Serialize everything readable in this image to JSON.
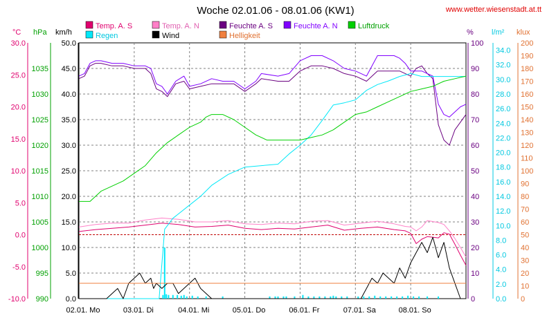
{
  "header": {
    "title": "Woche 02.01.06 - 08.01.06 (KW1)",
    "url": "www.wetter.wiesenstadt.at.tt"
  },
  "colors": {
    "temp_s": "#e0006e",
    "temp_n": "#ff80c8",
    "feuchte_s": "#6a0080",
    "feuchte_n": "#8000ff",
    "luftdruck": "#00d000",
    "regen": "#00e8f8",
    "wind": "#000000",
    "helligkeit": "#f08040",
    "grid": "#808080",
    "zero_line": "#c00000"
  },
  "legend": [
    {
      "key": "temp_s",
      "label": "Temp. A. S"
    },
    {
      "key": "temp_n",
      "label": "Temp. A. N"
    },
    {
      "key": "feuchte_s",
      "label": "Feuchte A. S"
    },
    {
      "key": "feuchte_n",
      "label": "Feuchte A. N"
    },
    {
      "key": "luftdruck",
      "label": "Luftdruck"
    },
    {
      "key": "regen",
      "label": "Regen"
    },
    {
      "key": "wind",
      "label": "Wind"
    },
    {
      "key": "helligkeit",
      "label": "Helligkeit"
    }
  ],
  "chart_data": {
    "type": "line",
    "x_labels": [
      "02.01. Mo",
      "03.01. Di",
      "04.01. Mi",
      "05.01. Do",
      "06.01. Fr",
      "07.01. Sa",
      "08.01. So"
    ],
    "axes": {
      "temp": {
        "unit": "°C",
        "min": -10,
        "max": 30,
        "ticks": [
          "30.0",
          "25.0",
          "20.0",
          "15.0",
          "10.0",
          "5.0",
          "0.0",
          "-5.0",
          "-10.0"
        ]
      },
      "pressure": {
        "unit": "hPa",
        "min": 990,
        "max": 1040,
        "ticks": [
          "1035",
          "1030",
          "1025",
          "1020",
          "1015",
          "1010",
          "1005",
          "1000",
          "995",
          "990"
        ]
      },
      "wind": {
        "unit": "km/h",
        "min": 0,
        "max": 50,
        "ticks": [
          "50.0",
          "45.0",
          "40.0",
          "35.0",
          "30.0",
          "25.0",
          "20.0",
          "15.0",
          "10.0",
          "5.0",
          "0.0"
        ]
      },
      "humidity": {
        "unit": "%",
        "min": 0,
        "max": 100,
        "ticks": [
          "100",
          "90",
          "80",
          "70",
          "60",
          "50",
          "40",
          "30",
          "20",
          "10",
          "0"
        ]
      },
      "rain": {
        "unit": "l/m²",
        "min": 0,
        "max": 35,
        "ticks": [
          "34.0",
          "32.0",
          "30.0",
          "28.0",
          "26.0",
          "24.0",
          "22.0",
          "20.0",
          "18.0",
          "16.0",
          "14.0",
          "12.0",
          "10.0",
          "8.0",
          "6.0",
          "4.0",
          "2.0",
          "0.0"
        ]
      },
      "light": {
        "unit": "klux",
        "min": 0,
        "max": 200,
        "ticks": [
          "200",
          "190",
          "180",
          "170",
          "160",
          "150",
          "140",
          "130",
          "120",
          "110",
          "100",
          "90",
          "80",
          "70",
          "60",
          "50",
          "40",
          "30",
          "20",
          "10",
          "0"
        ]
      }
    },
    "series": [
      {
        "key": "feuchte_s",
        "name": "Feuchte A. S",
        "axis": "humidity",
        "x": [
          0,
          0.1,
          0.2,
          0.3,
          0.4,
          0.6,
          0.8,
          1.0,
          1.2,
          1.3,
          1.4,
          1.5,
          1.6,
          1.75,
          1.9,
          2.0,
          2.2,
          2.4,
          2.6,
          2.8,
          3.0,
          3.2,
          3.3,
          3.6,
          3.8,
          4.0,
          4.2,
          4.4,
          4.6,
          4.8,
          5.0,
          5.2,
          5.4,
          5.6,
          5.7,
          5.8,
          5.9,
          6.0,
          6.1,
          6.2,
          6.3,
          6.4,
          6.5,
          6.6,
          6.7,
          6.8,
          6.9,
          7.0
        ],
        "y": [
          86,
          87,
          91,
          92,
          92,
          91,
          91,
          90,
          90,
          88,
          82,
          81,
          79,
          84,
          85,
          82,
          83,
          84,
          84,
          84,
          81,
          84,
          86,
          85,
          85,
          89,
          91,
          91,
          90,
          88,
          87,
          85,
          89,
          89,
          89,
          89,
          88,
          87,
          90,
          91,
          88,
          86,
          68,
          62,
          60,
          66,
          69,
          72
        ]
      },
      {
        "key": "feuchte_n",
        "name": "Feuchte A. N",
        "axis": "humidity",
        "x": [
          0,
          0.1,
          0.2,
          0.3,
          0.4,
          0.6,
          0.8,
          1.0,
          1.2,
          1.3,
          1.4,
          1.5,
          1.6,
          1.75,
          1.9,
          2.0,
          2.2,
          2.4,
          2.6,
          2.8,
          3.0,
          3.2,
          3.3,
          3.6,
          3.8,
          4.0,
          4.2,
          4.4,
          4.6,
          4.8,
          5.0,
          5.2,
          5.4,
          5.6,
          5.7,
          5.8,
          5.9,
          6.0,
          6.1,
          6.2,
          6.3,
          6.4,
          6.5,
          6.6,
          6.7,
          6.8,
          6.9,
          7.0
        ],
        "y": [
          87,
          88,
          92,
          93,
          93,
          92,
          92,
          91,
          91,
          90,
          84,
          83,
          80,
          85,
          87,
          83,
          84,
          86,
          85,
          85,
          82,
          85,
          88,
          87,
          88,
          93,
          95,
          95,
          93,
          90,
          89,
          87,
          95,
          95,
          95,
          94,
          92,
          89,
          89,
          89,
          88,
          87,
          76,
          72,
          71,
          73,
          75,
          76
        ]
      },
      {
        "key": "temp_n",
        "name": "Temp. A. N",
        "axis": "temp",
        "x": [
          0,
          0.3,
          0.6,
          0.9,
          1.2,
          1.5,
          1.8,
          2.1,
          2.4,
          2.7,
          3.0,
          3.3,
          3.6,
          3.9,
          4.2,
          4.5,
          4.8,
          5.1,
          5.4,
          5.7,
          5.9,
          6.0,
          6.1,
          6.2,
          6.3,
          6.5,
          6.6,
          6.7,
          6.8,
          6.9,
          7.0
        ],
        "y": [
          1.2,
          1.6,
          1.8,
          1.8,
          2.3,
          2.6,
          2.4,
          2.0,
          2.0,
          2.2,
          1.7,
          1.6,
          1.8,
          1.7,
          2.1,
          2.2,
          1.5,
          1.8,
          2.1,
          1.7,
          1.3,
          1.2,
          0.6,
          1.2,
          2.2,
          1.9,
          1.6,
          0.6,
          -0.6,
          -2.0,
          -3.5
        ]
      },
      {
        "key": "temp_s",
        "name": "Temp. A. S",
        "axis": "temp",
        "x": [
          0,
          0.3,
          0.6,
          0.9,
          1.2,
          1.5,
          1.8,
          2.1,
          2.4,
          2.7,
          3.0,
          3.3,
          3.6,
          3.9,
          4.2,
          4.5,
          4.8,
          5.1,
          5.4,
          5.7,
          5.9,
          6.0,
          6.1,
          6.2,
          6.3,
          6.5,
          6.6,
          6.7,
          6.8,
          6.9,
          7.0
        ],
        "y": [
          0.5,
          0.8,
          1.0,
          1.2,
          1.5,
          1.8,
          1.6,
          1.2,
          1.3,
          1.5,
          1.0,
          0.8,
          1.0,
          0.9,
          1.2,
          1.5,
          0.7,
          1.0,
          1.2,
          0.8,
          0.6,
          0.2,
          -1.4,
          -0.7,
          -0.3,
          -0.5,
          0.3,
          0.1,
          -1.5,
          -3.2,
          -4.8
        ]
      },
      {
        "key": "regen",
        "name": "Regen",
        "axis": "rain",
        "x": [
          0,
          1.3,
          1.45,
          1.55,
          1.7,
          2.0,
          2.2,
          2.4,
          2.7,
          3.0,
          3.3,
          3.6,
          3.8,
          4.0,
          4.2,
          4.4,
          4.6,
          4.8,
          5.0,
          5.2,
          5.4,
          5.6,
          5.8,
          6.0,
          6.2,
          6.4,
          7.0
        ],
        "y": [
          0,
          0,
          0,
          9.5,
          11.0,
          12.8,
          14.0,
          15.5,
          17.0,
          18.0,
          18.2,
          18.4,
          19.8,
          21.0,
          22.4,
          24.4,
          26.5,
          26.8,
          27.2,
          28.5,
          29.3,
          29.8,
          30.4,
          30.8,
          30.4,
          30.4,
          30.4
        ]
      },
      {
        "key": "luftdruck",
        "name": "Luftdruck",
        "axis": "pressure",
        "x": [
          0,
          0.2,
          0.4,
          0.6,
          0.8,
          1.0,
          1.2,
          1.4,
          1.6,
          1.8,
          2.0,
          2.2,
          2.3,
          2.4,
          2.6,
          2.8,
          3.0,
          3.2,
          3.4,
          3.6,
          3.8,
          4.0,
          4.2,
          4.4,
          4.6,
          4.8,
          5.0,
          5.2,
          5.4,
          5.6,
          5.8,
          6.0,
          6.2,
          6.4,
          6.6,
          6.8,
          7.0
        ],
        "y": [
          1009,
          1009,
          1011,
          1012,
          1013,
          1014.5,
          1016,
          1018.5,
          1020.5,
          1022,
          1023.5,
          1024.5,
          1025.5,
          1026,
          1026,
          1025,
          1023.5,
          1022,
          1021,
          1021,
          1021,
          1021,
          1021.5,
          1022,
          1023,
          1024.5,
          1026,
          1026.5,
          1027.5,
          1028.5,
          1029.5,
          1030.5,
          1031,
          1031.5,
          1032.5,
          1033,
          1033.5
        ]
      },
      {
        "key": "wind",
        "name": "Wind",
        "axis": "wind",
        "x": [
          0,
          0.5,
          0.7,
          0.8,
          0.9,
          1.0,
          1.1,
          1.2,
          1.3,
          1.35,
          1.4,
          1.5,
          1.6,
          1.7,
          1.8,
          2.0,
          2.1,
          2.2,
          2.3,
          2.4,
          2.6,
          3.0,
          3.5,
          4.0,
          4.5,
          5.0,
          5.1,
          5.2,
          5.3,
          5.4,
          5.5,
          5.6,
          5.7,
          5.8,
          5.9,
          6.0,
          6.1,
          6.2,
          6.3,
          6.4,
          6.5,
          6.6,
          6.7,
          6.8,
          6.9,
          7.0
        ],
        "y": [
          0,
          0,
          2,
          0,
          3,
          4,
          5,
          3,
          4,
          2,
          3,
          2,
          3,
          3,
          1,
          3,
          4,
          2,
          1,
          0,
          0,
          0,
          0,
          0,
          0,
          0,
          0,
          2,
          4,
          3,
          5,
          4,
          3,
          6,
          4,
          7,
          9,
          11,
          9,
          12,
          8,
          11,
          6,
          3,
          0,
          0
        ]
      },
      {
        "key": "helligkeit",
        "name": "Helligkeit",
        "axis": "light",
        "x": [
          0,
          7.0
        ],
        "y": [
          12,
          12
        ]
      }
    ],
    "bars": {
      "key": "regen_bars",
      "axis": "rain",
      "x": [
        1.52,
        1.55,
        1.58,
        1.62,
        1.7,
        1.78,
        1.85,
        1.9,
        1.95,
        2.05,
        2.15,
        2.3,
        2.6,
        3.45,
        3.55,
        3.6,
        3.7,
        3.75,
        3.9,
        4.05,
        4.15,
        4.25,
        4.35,
        4.45,
        4.55,
        4.6,
        4.65,
        4.75,
        4.85,
        5.05,
        5.15,
        5.25,
        5.35,
        5.45,
        5.55,
        5.65,
        5.75,
        5.85,
        5.95,
        6.05,
        6.15,
        6.3,
        6.5
      ],
      "y": [
        0.5,
        7,
        0.6,
        0.5,
        0.5,
        0.5,
        0.4,
        0.5,
        0.3,
        0.4,
        0.3,
        0.3,
        0.3,
        0.3,
        0.3,
        0.3,
        0.3,
        0.3,
        0.3,
        0.5,
        0.3,
        0.3,
        0.3,
        0.3,
        0.3,
        0.4,
        0.3,
        0.3,
        0.3,
        0.3,
        0.3,
        0.3,
        0.4,
        0.3,
        0.3,
        0.3,
        0.3,
        0.3,
        0.4,
        0.3,
        0.3,
        0.3,
        0.3
      ]
    }
  }
}
